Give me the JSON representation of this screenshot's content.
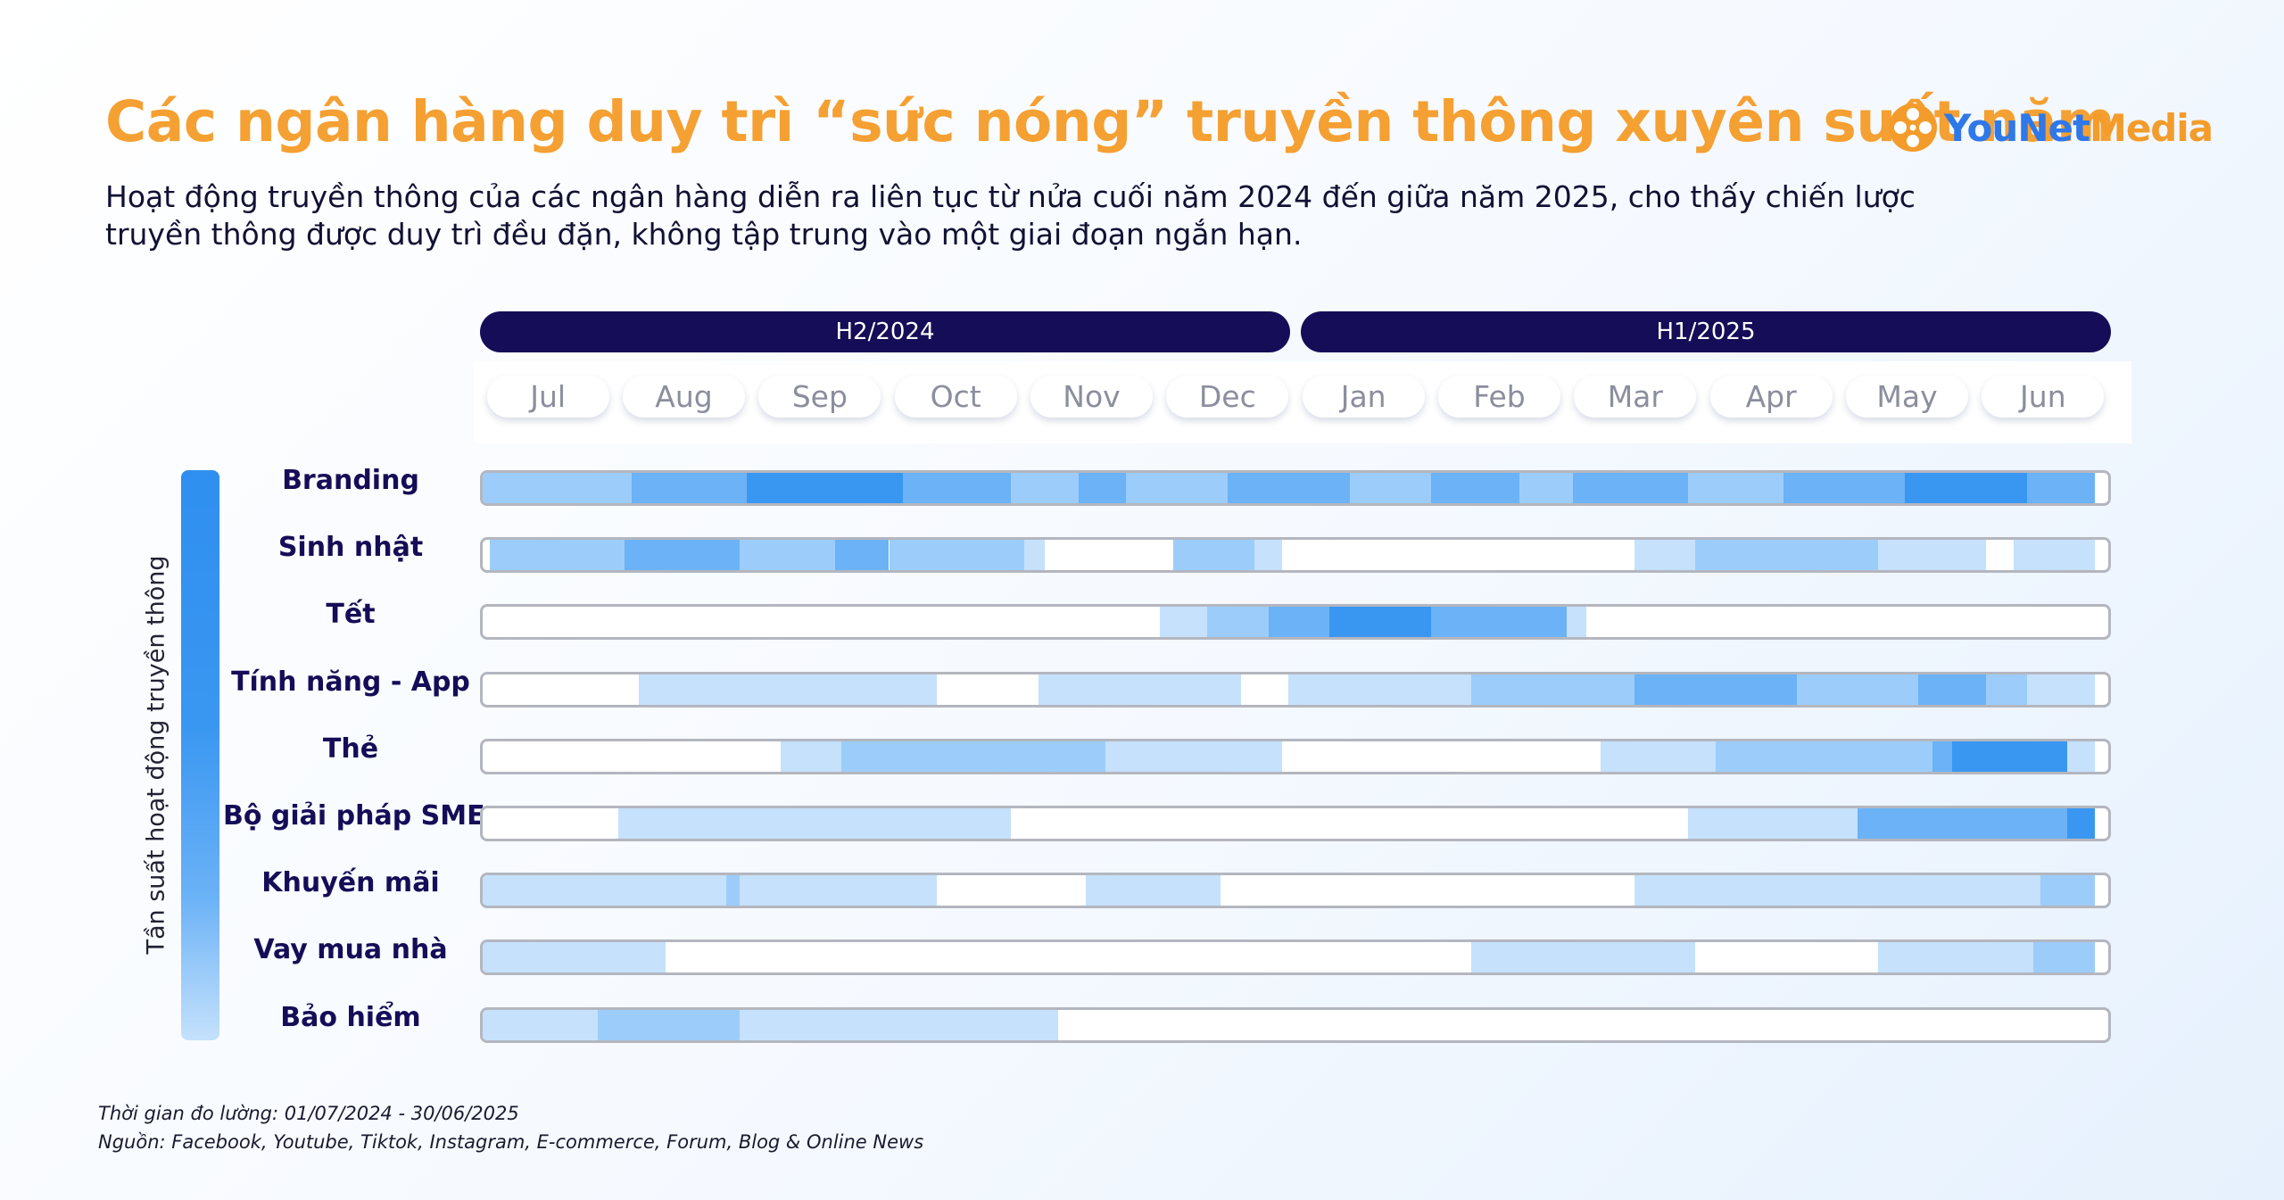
{
  "title": "Các ngân hàng duy trì “sức nóng” truyền thông xuyên suốt năm",
  "subtitle": "Hoạt động truyền thông của các ngân hàng diễn ra liên tục từ nửa cuối năm 2024 đến giữa năm 2025, cho thấy chiến lược truyền thông được duy trì đều đặn, không tập trung vào một giai đoạn ngắn hạn.",
  "logo": {
    "brand": "YouNet",
    "suffix": "Media"
  },
  "colors": {
    "title": "#f5a032",
    "period": "#150d57",
    "level1": "#c5e1fc",
    "level2": "#9ccdfa",
    "level3": "#6bb2f6",
    "level4": "#3a97f1"
  },
  "footer": {
    "period": "Thời gian đo lường: 01/07/2024 - 30/06/2025",
    "source": "Nguồn: Facebook, Youtube, Tiktok, Instagram, E-commerce, Forum, Blog & Online News"
  },
  "chart_data": {
    "type": "heatmap",
    "title": "Các ngân hàng duy trì “sức nóng” truyền thông xuyên suốt năm",
    "ylabel": "Tần suất hoạt động truyền thông",
    "periods": [
      {
        "label": "H2/2024",
        "from": 0,
        "to": 6
      },
      {
        "label": "H1/2025",
        "from": 6,
        "to": 12
      }
    ],
    "months": [
      "Jul",
      "Aug",
      "Sep",
      "Oct",
      "Nov",
      "Dec",
      "Jan",
      "Feb",
      "Mar",
      "Apr",
      "May",
      "Jun"
    ],
    "categories": [
      "Branding",
      "Sinh nhật",
      "Tết",
      "Tính năng - App",
      "Thẻ",
      "Bộ giải pháp SME",
      "Khuyến mãi",
      "Vay mua nhà",
      "Bảo hiểm"
    ],
    "intensity_scale": "1 = low … 4 = high",
    "series": [
      {
        "name": "Branding",
        "segments": [
          [
            0,
            1.1,
            2
          ],
          [
            1.1,
            1.6,
            3
          ],
          [
            1.6,
            1.95,
            3
          ],
          [
            1.95,
            3.1,
            4
          ],
          [
            3.1,
            3.9,
            3
          ],
          [
            3.9,
            4.4,
            2
          ],
          [
            4.4,
            4.75,
            3
          ],
          [
            4.75,
            5.5,
            2
          ],
          [
            5.5,
            6.4,
            3
          ],
          [
            6.4,
            7.0,
            2
          ],
          [
            7.0,
            7.65,
            3
          ],
          [
            7.65,
            8.05,
            2
          ],
          [
            8.05,
            8.9,
            3
          ],
          [
            8.9,
            9.6,
            2
          ],
          [
            9.6,
            10.15,
            3
          ],
          [
            10.15,
            10.5,
            3
          ],
          [
            10.5,
            11.4,
            4
          ],
          [
            11.4,
            11.9,
            3
          ]
        ]
      },
      {
        "name": "Sinh nhật",
        "segments": [
          [
            0.05,
            1.05,
            2
          ],
          [
            1.05,
            1.9,
            3
          ],
          [
            1.9,
            2.6,
            2
          ],
          [
            2.6,
            3.0,
            3
          ],
          [
            3.0,
            4.0,
            2
          ],
          [
            4.0,
            4.15,
            1
          ],
          [
            5.1,
            5.7,
            2
          ],
          [
            5.7,
            5.9,
            1
          ],
          [
            8.5,
            8.95,
            1
          ],
          [
            8.95,
            9.8,
            2
          ],
          [
            9.8,
            10.3,
            2
          ],
          [
            10.3,
            11.1,
            1
          ],
          [
            11.3,
            11.9,
            1
          ]
        ]
      },
      {
        "name": "Tết",
        "segments": [
          [
            5.0,
            5.35,
            1
          ],
          [
            5.35,
            5.8,
            2
          ],
          [
            5.8,
            6.0,
            3
          ],
          [
            6.0,
            6.25,
            3
          ],
          [
            6.25,
            7.0,
            4
          ],
          [
            7.0,
            7.25,
            3
          ],
          [
            7.25,
            7.7,
            3
          ],
          [
            7.7,
            8.0,
            3
          ],
          [
            8.0,
            8.15,
            1
          ]
        ]
      },
      {
        "name": "Tính năng - App",
        "segments": [
          [
            1.15,
            3.35,
            1
          ],
          [
            4.1,
            5.6,
            1
          ],
          [
            5.95,
            7.3,
            1
          ],
          [
            7.3,
            8.5,
            2
          ],
          [
            8.5,
            9.7,
            3
          ],
          [
            9.7,
            10.6,
            2
          ],
          [
            10.6,
            11.1,
            3
          ],
          [
            11.1,
            11.4,
            2
          ],
          [
            11.4,
            11.9,
            1
          ]
        ]
      },
      {
        "name": "Thẻ",
        "segments": [
          [
            2.2,
            2.65,
            1
          ],
          [
            2.65,
            4.6,
            2
          ],
          [
            4.6,
            5.9,
            1
          ],
          [
            8.25,
            9.1,
            1
          ],
          [
            9.1,
            10.7,
            2
          ],
          [
            10.7,
            10.85,
            3
          ],
          [
            10.85,
            11.7,
            4
          ],
          [
            11.7,
            11.9,
            1
          ]
        ]
      },
      {
        "name": "Bộ giải pháp SME",
        "segments": [
          [
            1.0,
            3.9,
            1
          ],
          [
            8.9,
            10.15,
            1
          ],
          [
            10.15,
            11.7,
            3
          ],
          [
            11.7,
            11.9,
            4
          ]
        ]
      },
      {
        "name": "Khuyến mãi",
        "segments": [
          [
            0.0,
            1.8,
            1
          ],
          [
            1.8,
            1.9,
            2
          ],
          [
            1.9,
            3.35,
            1
          ],
          [
            4.45,
            5.45,
            1
          ],
          [
            8.5,
            11.5,
            1
          ],
          [
            11.5,
            11.9,
            2
          ]
        ]
      },
      {
        "name": "Vay mua nhà",
        "segments": [
          [
            0.0,
            1.35,
            1
          ],
          [
            7.3,
            8.95,
            1
          ],
          [
            10.3,
            11.45,
            1
          ],
          [
            11.45,
            11.9,
            2
          ]
        ]
      },
      {
        "name": "Bảo hiểm",
        "segments": [
          [
            0.0,
            0.85,
            1
          ],
          [
            0.85,
            1.9,
            2
          ],
          [
            1.9,
            4.25,
            1
          ]
        ]
      }
    ]
  }
}
